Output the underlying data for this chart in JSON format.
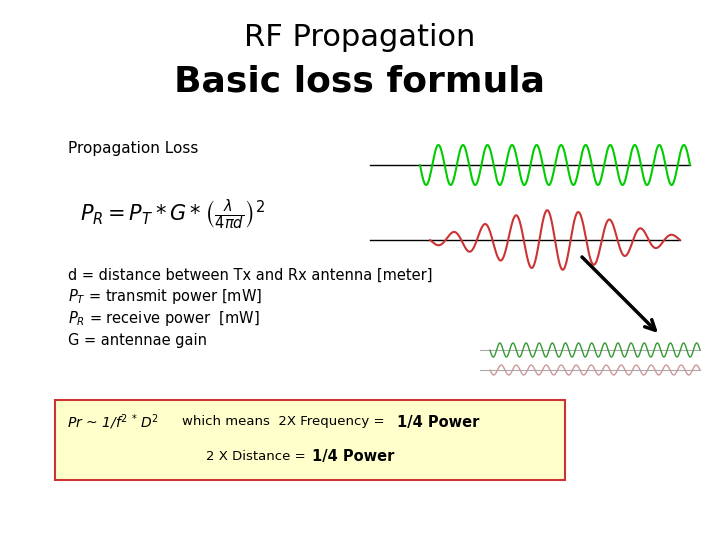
{
  "title_line1": "RF Propagation",
  "title_line2": "Basic loss formula",
  "bg_color": "#ffffff",
  "prop_loss_label": "Propagation Loss",
  "desc_lines": [
    "d = distance between Tx and Rx antenna [meter]",
    "$P_T$ = transmit power [mW]",
    "$P_R$ = receive power  [mW]",
    "G = antennae gain"
  ],
  "box_bg": "#ffffcc",
  "box_edge": "#cc3333",
  "green_wave_color": "#00cc00",
  "red_wave_color": "#cc3333",
  "small_green_color": "#339933",
  "small_red_color": "#cc9999",
  "arrow_color": "#000000"
}
